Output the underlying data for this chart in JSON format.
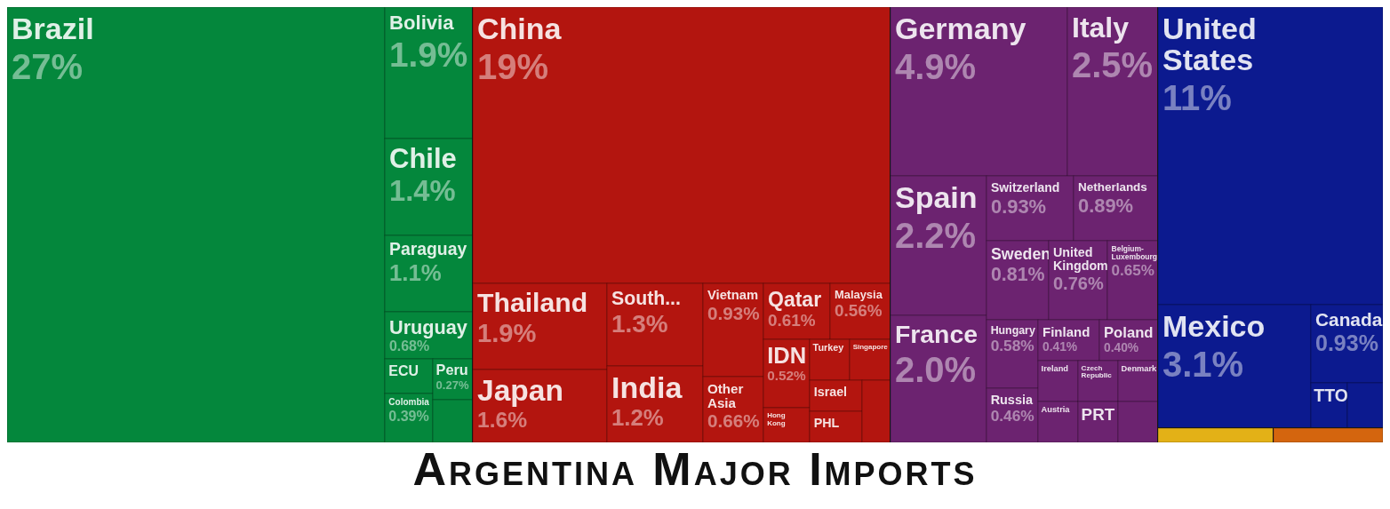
{
  "chart_data": {
    "type": "other",
    "title": "Argentina Major Imports",
    "categories": [
      "Brazil",
      "Bolivia",
      "Chile",
      "Paraguay",
      "Uruguay",
      "ECU",
      "Colombia",
      "Peru",
      null,
      "China",
      "Thailand",
      "Japan",
      "South...",
      "India",
      "Vietnam",
      "Other Asia",
      "Qatar",
      "Malaysia",
      "IDN",
      "Hong Kong",
      "Turkey",
      "Singapore",
      "Israel",
      "PHL",
      null,
      "Germany",
      "Italy",
      "Spain",
      "France",
      "Switzerland",
      "Netherlands",
      "Sweden",
      "United Kingdom",
      "Belgium-Luxembourg",
      "Hungary",
      "Russia",
      "Finland",
      "Poland",
      "Ireland",
      "Austria",
      "Czech Republic",
      "Denmark",
      "PRT",
      null,
      "United States",
      "Mexico",
      "Canada",
      "TTO",
      null,
      null,
      null
    ],
    "values": [
      27,
      1.9,
      1.4,
      1.1,
      0.68,
      null,
      0.39,
      0.27,
      null,
      19,
      1.9,
      1.6,
      1.3,
      1.2,
      0.93,
      0.66,
      0.61,
      0.56,
      0.52,
      null,
      null,
      null,
      null,
      null,
      null,
      4.9,
      2.5,
      2.2,
      2.0,
      0.93,
      0.89,
      0.81,
      0.76,
      0.65,
      0.58,
      0.46,
      0.41,
      0.4,
      null,
      null,
      null,
      null,
      null,
      null,
      11,
      3.1,
      0.93,
      null,
      null,
      null,
      null
    ],
    "value_labels": [
      "27%",
      "1.9%",
      "1.4%",
      "1.1%",
      "0.68%",
      null,
      "0.39%",
      "0.27%",
      null,
      "19%",
      "1.9%",
      "1.6%",
      "1.3%",
      "1.2%",
      "0.93%",
      "0.66%",
      "0.61%",
      "0.56%",
      "0.52%",
      null,
      null,
      null,
      null,
      null,
      null,
      "4.9%",
      "2.5%",
      "2.2%",
      "2.0%",
      "0.93%",
      "0.89%",
      "0.81%",
      "0.76%",
      "0.65%",
      "0.58%",
      "0.46%",
      "0.41%",
      "0.40%",
      null,
      null,
      null,
      null,
      null,
      null,
      "11%",
      "3.1%",
      "0.93%",
      null,
      null,
      null,
      null
    ],
    "colors": [
      "#04873c",
      "#04873c",
      "#04873c",
      "#04873c",
      "#04873c",
      "#04873c",
      "#04873c",
      "#04873c",
      "#04873c",
      "#b3150f",
      "#b3150f",
      "#b3150f",
      "#b3150f",
      "#b3150f",
      "#b3150f",
      "#b3150f",
      "#b3150f",
      "#b3150f",
      "#b3150f",
      "#b3150f",
      "#b3150f",
      "#b3150f",
      "#b3150f",
      "#b3150f",
      "#b3150f",
      "#6c2370",
      "#6c2370",
      "#6c2370",
      "#6c2370",
      "#6c2370",
      "#6c2370",
      "#6c2370",
      "#6c2370",
      "#6c2370",
      "#6c2370",
      "#6c2370",
      "#6c2370",
      "#6c2370",
      "#6c2370",
      "#6c2370",
      "#6c2370",
      "#6c2370",
      "#6c2370",
      "#6c2370",
      "#0c1a8f",
      "#0c1a8f",
      "#0c1a8f",
      "#0c1a8f",
      "#0c1a8f",
      "#e3b117",
      "#d4650e"
    ]
  }
}
